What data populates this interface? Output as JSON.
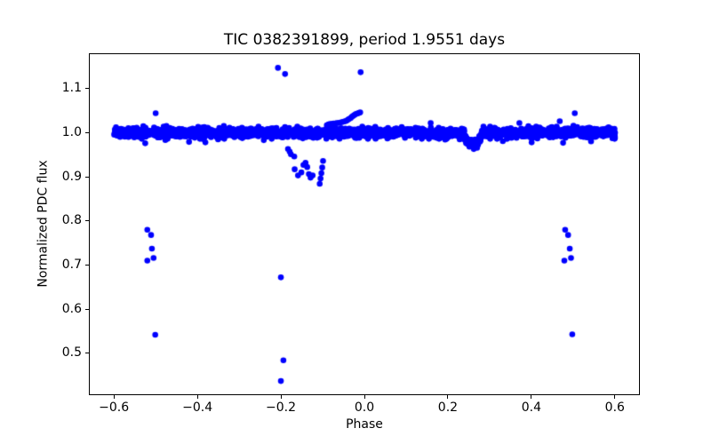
{
  "figure": {
    "background": "#ffffff",
    "text_color": "#000000"
  },
  "chart_data": {
    "type": "scatter",
    "title": "TIC 0382391899, period 1.9551 days",
    "xlabel": "Phase",
    "ylabel": "Normalized PDC flux",
    "xlim": [
      -0.66,
      0.66
    ],
    "ylim": [
      0.405,
      1.18
    ],
    "grid": false,
    "legend": null,
    "marker": {
      "shape": "circle",
      "color": "#0000ff",
      "radius_px": 3.3
    },
    "xticks": {
      "values": [
        -0.6,
        -0.4,
        -0.2,
        0.0,
        0.2,
        0.4,
        0.6
      ],
      "labels": [
        "−0.6",
        "−0.4",
        "−0.2",
        "0.0",
        "0.2",
        "0.4",
        "0.6"
      ]
    },
    "yticks": {
      "values": [
        0.5,
        0.6,
        0.7,
        0.8,
        0.9,
        1.0,
        1.1
      ],
      "labels": [
        "0.5",
        "0.6",
        "0.7",
        "0.8",
        "0.9",
        "1.0",
        "1.1"
      ]
    },
    "band": {
      "description": "dense out-of-eclipse flux band",
      "phase_min": -0.601,
      "phase_max": 0.601,
      "flux_center": 1.0,
      "flux_sigma": 0.005,
      "flux_clip": 0.014,
      "n_points": 2600,
      "fuzz_n_points": 140,
      "fuzz_sigma": 0.009,
      "fuzz_clip": 0.022,
      "random_seed": 11
    },
    "notch": {
      "description": "shallow dip in band",
      "phase_center": 0.26,
      "phase_half_width": 0.021,
      "flux_depth": 0.028
    },
    "trail_points": [
      [
        -0.09,
        1.017
      ],
      [
        -0.086,
        1.019
      ],
      [
        -0.082,
        1.02
      ],
      [
        -0.078,
        1.02
      ],
      [
        -0.074,
        1.021
      ],
      [
        -0.07,
        1.021
      ],
      [
        -0.066,
        1.022
      ],
      [
        -0.062,
        1.022
      ],
      [
        -0.058,
        1.023
      ],
      [
        -0.054,
        1.024
      ],
      [
        -0.05,
        1.025
      ],
      [
        -0.046,
        1.026
      ],
      [
        -0.043,
        1.027
      ],
      [
        -0.04,
        1.029
      ],
      [
        -0.037,
        1.031
      ],
      [
        -0.033,
        1.033
      ],
      [
        -0.03,
        1.036
      ],
      [
        -0.027,
        1.038
      ],
      [
        -0.024,
        1.04
      ],
      [
        -0.021,
        1.042
      ],
      [
        -0.018,
        1.043
      ],
      [
        -0.015,
        1.044
      ],
      [
        -0.012,
        1.045
      ],
      [
        -0.01,
        1.046
      ]
    ],
    "secondary_eclipse_points": [
      [
        -0.183,
        0.963
      ],
      [
        -0.179,
        0.957
      ],
      [
        -0.176,
        0.951
      ],
      [
        -0.168,
        0.946
      ],
      [
        -0.167,
        0.917
      ],
      [
        -0.159,
        0.903
      ],
      [
        -0.151,
        0.91
      ],
      [
        -0.146,
        0.927
      ],
      [
        -0.141,
        0.932
      ],
      [
        -0.137,
        0.922
      ],
      [
        -0.133,
        0.906
      ],
      [
        -0.129,
        0.898
      ],
      [
        -0.124,
        0.903
      ],
      [
        -0.099,
        0.936
      ],
      [
        -0.101,
        0.921
      ],
      [
        -0.103,
        0.908
      ],
      [
        -0.105,
        0.896
      ],
      [
        -0.107,
        0.884
      ]
    ],
    "outlier_points": [
      [
        -0.207,
        1.147
      ],
      [
        -0.19,
        1.133
      ],
      [
        -0.009,
        1.137
      ],
      [
        -0.5,
        1.044
      ],
      [
        0.504,
        1.044
      ],
      [
        0.468,
        1.026
      ],
      [
        -0.525,
        0.976
      ],
      [
        -0.42,
        0.979
      ],
      [
        -0.241,
        0.983
      ],
      [
        0.476,
        0.977
      ],
      [
        -0.52,
        0.78
      ],
      [
        -0.511,
        0.768
      ],
      [
        -0.509,
        0.737
      ],
      [
        -0.505,
        0.716
      ],
      [
        -0.52,
        0.71
      ],
      [
        -0.501,
        0.542
      ],
      [
        0.481,
        0.78
      ],
      [
        0.488,
        0.768
      ],
      [
        0.492,
        0.737
      ],
      [
        0.495,
        0.716
      ],
      [
        0.479,
        0.71
      ],
      [
        0.498,
        0.543
      ],
      [
        -0.2,
        0.672
      ],
      [
        -0.194,
        0.484
      ],
      [
        -0.2,
        0.437
      ]
    ]
  }
}
